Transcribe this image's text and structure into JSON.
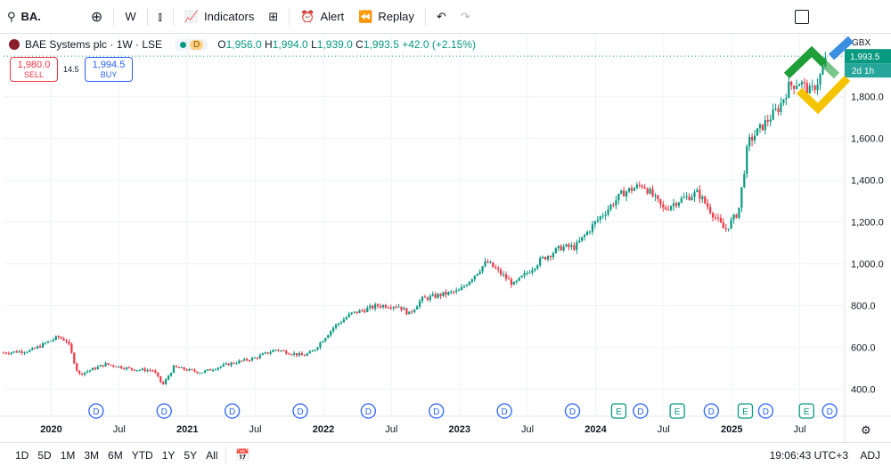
{
  "toolbar": {
    "symbol": "BA.",
    "interval": "W",
    "indicators_label": "Indicators",
    "alert_label": "Alert",
    "replay_label": "Replay"
  },
  "legend": {
    "title": "BAE Systems plc · 1W · LSE",
    "badge": "D",
    "open_key": "O",
    "open": "1,956.0",
    "high_key": "H",
    "high": "1,994.0",
    "low_key": "L",
    "low": "1,939.0",
    "close_key": "C",
    "close": "1,993.5",
    "change": "+42.0 (+2.15%)"
  },
  "trade": {
    "sell_price": "1,980.0",
    "sell_label": "SELL",
    "spread": "14.5",
    "buy_price": "1,994.5",
    "buy_label": "BUY"
  },
  "price_scale": {
    "currency": "GBX",
    "countdown": "2d 1h"
  },
  "chart_data": {
    "type": "candlestick",
    "title": "BAE Systems plc · 1W · LSE",
    "ylim": [
      330,
      1990
    ],
    "y_ticks": [
      400,
      600,
      800,
      1000,
      1200,
      1400,
      1600,
      1800
    ],
    "y_tick_labels": [
      "400.0",
      "600.0",
      "800.0",
      "1,000.0",
      "1,200.0",
      "1,400.0",
      "1,600.0",
      "1,800.0"
    ],
    "x_ticks": [
      2020,
      2020.5,
      2021,
      2021.5,
      2022,
      2022.5,
      2023,
      2023.5,
      2024,
      2024.5,
      2025,
      2025.5
    ],
    "x_tick_labels": [
      "2020",
      "Jul",
      "2021",
      "Jul",
      "2022",
      "Jul",
      "2023",
      "Jul",
      "2024",
      "Jul",
      "2025",
      "Jul"
    ],
    "xlim": [
      2019.65,
      2025.83
    ],
    "last_close": 1993.5,
    "price_path": [
      [
        2019.65,
        575
      ],
      [
        2019.85,
        585
      ],
      [
        2020.05,
        650
      ],
      [
        2020.12,
        630
      ],
      [
        2020.2,
        470
      ],
      [
        2020.4,
        520
      ],
      [
        2020.6,
        495
      ],
      [
        2020.75,
        490
      ],
      [
        2020.82,
        420
      ],
      [
        2020.9,
        505
      ],
      [
        2021.1,
        480
      ],
      [
        2021.3,
        520
      ],
      [
        2021.5,
        550
      ],
      [
        2021.65,
        590
      ],
      [
        2021.85,
        560
      ],
      [
        2021.92,
        580
      ],
      [
        2022.08,
        700
      ],
      [
        2022.2,
        760
      ],
      [
        2022.4,
        800
      ],
      [
        2022.55,
        800
      ],
      [
        2022.63,
        760
      ],
      [
        2022.72,
        830
      ],
      [
        2022.85,
        850
      ],
      [
        2023.0,
        870
      ],
      [
        2023.2,
        1010
      ],
      [
        2023.4,
        900
      ],
      [
        2023.6,
        1020
      ],
      [
        2023.75,
        1080
      ],
      [
        2023.85,
        1080
      ],
      [
        2024.0,
        1200
      ],
      [
        2024.2,
        1340
      ],
      [
        2024.35,
        1380
      ],
      [
        2024.5,
        1260
      ],
      [
        2024.6,
        1300
      ],
      [
        2024.75,
        1340
      ],
      [
        2024.95,
        1160
      ],
      [
        2025.05,
        1250
      ],
      [
        2025.12,
        1580
      ],
      [
        2025.2,
        1640
      ],
      [
        2025.35,
        1750
      ],
      [
        2025.42,
        1850
      ],
      [
        2025.5,
        1870
      ],
      [
        2025.58,
        1820
      ],
      [
        2025.64,
        1880
      ],
      [
        2025.7,
        1993
      ]
    ],
    "event_markers": [
      {
        "x": 2020.33,
        "label": "D"
      },
      {
        "x": 2020.83,
        "label": "D"
      },
      {
        "x": 2021.33,
        "label": "D"
      },
      {
        "x": 2021.83,
        "label": "D"
      },
      {
        "x": 2022.33,
        "label": "D"
      },
      {
        "x": 2022.83,
        "label": "D"
      },
      {
        "x": 2023.33,
        "label": "D"
      },
      {
        "x": 2023.83,
        "label": "D"
      },
      {
        "x": 2024.17,
        "label": "E"
      },
      {
        "x": 2024.33,
        "label": "D"
      },
      {
        "x": 2024.6,
        "label": "E"
      },
      {
        "x": 2024.85,
        "label": "D"
      },
      {
        "x": 2025.1,
        "label": "E"
      },
      {
        "x": 2025.25,
        "label": "D"
      },
      {
        "x": 2025.55,
        "label": "E"
      },
      {
        "x": 2025.72,
        "label": "D"
      }
    ]
  },
  "bottom": {
    "ranges": [
      "1D",
      "5D",
      "1M",
      "3M",
      "6M",
      "YTD",
      "1Y",
      "5Y",
      "All"
    ],
    "clock": "19:06:43 UTC+3",
    "adj": "ADJ"
  },
  "colors": {
    "up": "#089981",
    "down": "#f23645",
    "grid": "#f0f3fa",
    "countdown_bg": "#26a69a"
  }
}
